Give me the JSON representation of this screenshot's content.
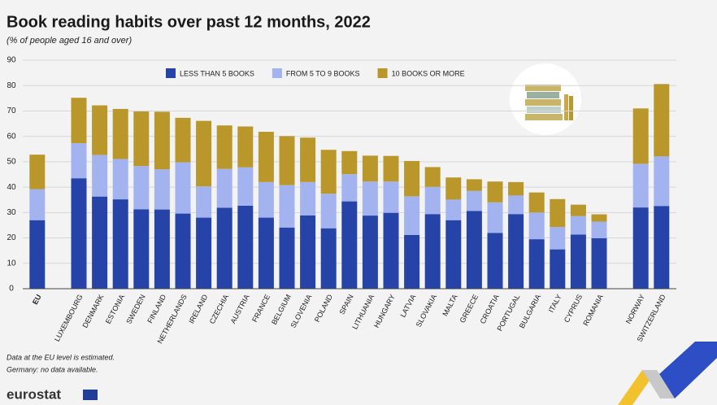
{
  "chart_data": {
    "type": "stacked_bar",
    "title": "Book reading habits over past 12 months, 2022",
    "subtitle": "(% of people aged 16 and over)",
    "categories": [
      "EU",
      null,
      "LUXEMBOURG",
      "DENMARK",
      "ESTONIA",
      "SWEDEN",
      "FINLAND",
      "NETHERLANDS",
      "IRELAND",
      "CZECHIA",
      "AUSTRIA",
      "FRANCE",
      "BELGIUM",
      "SLOVENIA",
      "POLAND",
      "SPAIN",
      "LITHUANIA",
      "HUNGARY",
      "LATVIA",
      "SLOVAKIA",
      "MALTA",
      "GREECE",
      "CROATIA",
      "PORTUGAL",
      "BULGARIA",
      "ITALY",
      "CYPRUS",
      "ROMANIA",
      null,
      "NORWAY",
      "SWITZERLAND"
    ],
    "series": [
      {
        "name": "LESS THAN 5 BOOKS",
        "color": "#2644a7",
        "values": [
          27,
          null,
          43.5,
          36.3,
          35.2,
          31.3,
          31.2,
          29.6,
          28,
          31.9,
          32.7,
          28,
          24.1,
          28.9,
          23.8,
          34.4,
          28.8,
          29.9,
          21.2,
          29.4,
          27,
          30.6,
          22,
          29.4,
          19.5,
          15.5,
          21.3,
          19.9,
          null,
          32,
          32.6
        ]
      },
      {
        "name": "FROM 5 TO 9 BOOKS",
        "color": "#a3b3f0",
        "values": [
          12.2,
          null,
          13.8,
          16.4,
          15.9,
          17,
          15.8,
          20.2,
          12.3,
          15.3,
          15.1,
          14,
          16.7,
          13.1,
          13.6,
          10.7,
          13.4,
          12.3,
          15.2,
          10.7,
          8.1,
          7.9,
          12,
          7.3,
          10.5,
          8.8,
          7.3,
          6.5,
          null,
          17.2,
          19.5
        ]
      },
      {
        "name": "10 BOOKS OR MORE",
        "color": "#b9972b",
        "values": [
          13.6,
          null,
          17.9,
          19.5,
          19.7,
          21.5,
          22.7,
          17.5,
          25.8,
          17.1,
          16.1,
          19.8,
          19.3,
          17.5,
          17.3,
          9.1,
          10.2,
          10.1,
          13.9,
          7.8,
          8.7,
          4.6,
          8.2,
          5.3,
          7.9,
          11,
          4.5,
          2.9,
          null,
          21.8,
          28.5
        ]
      }
    ],
    "ylim": [
      0,
      90
    ],
    "yticks": [
      0,
      10,
      20,
      30,
      40,
      50,
      60,
      70,
      80,
      90
    ],
    "grid": true,
    "notes": [
      "Data at the EU level is estimated.",
      "Germany: no data available."
    ],
    "logo": "eurostat"
  }
}
